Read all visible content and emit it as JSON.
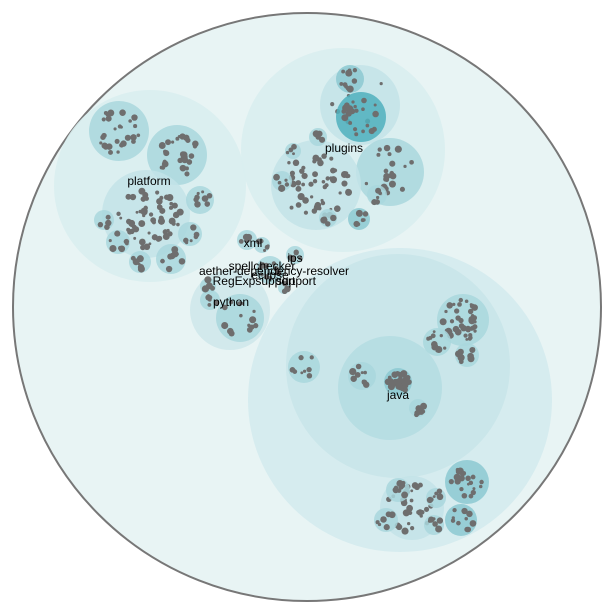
{
  "chart_data": {
    "type": "circle-packing",
    "labels": [
      "java",
      "plugins",
      "platform",
      "python",
      "xml",
      "ips",
      "aether-dependency-resolver",
      "RegExpsupport",
      "support",
      "spellchecker",
      "eclipse"
    ]
  },
  "colors": {
    "background": "#ffffff",
    "root_fill": "#e8f4f4",
    "root_stroke": "#777777",
    "leaf_dot": "#6e6e6e"
  }
}
